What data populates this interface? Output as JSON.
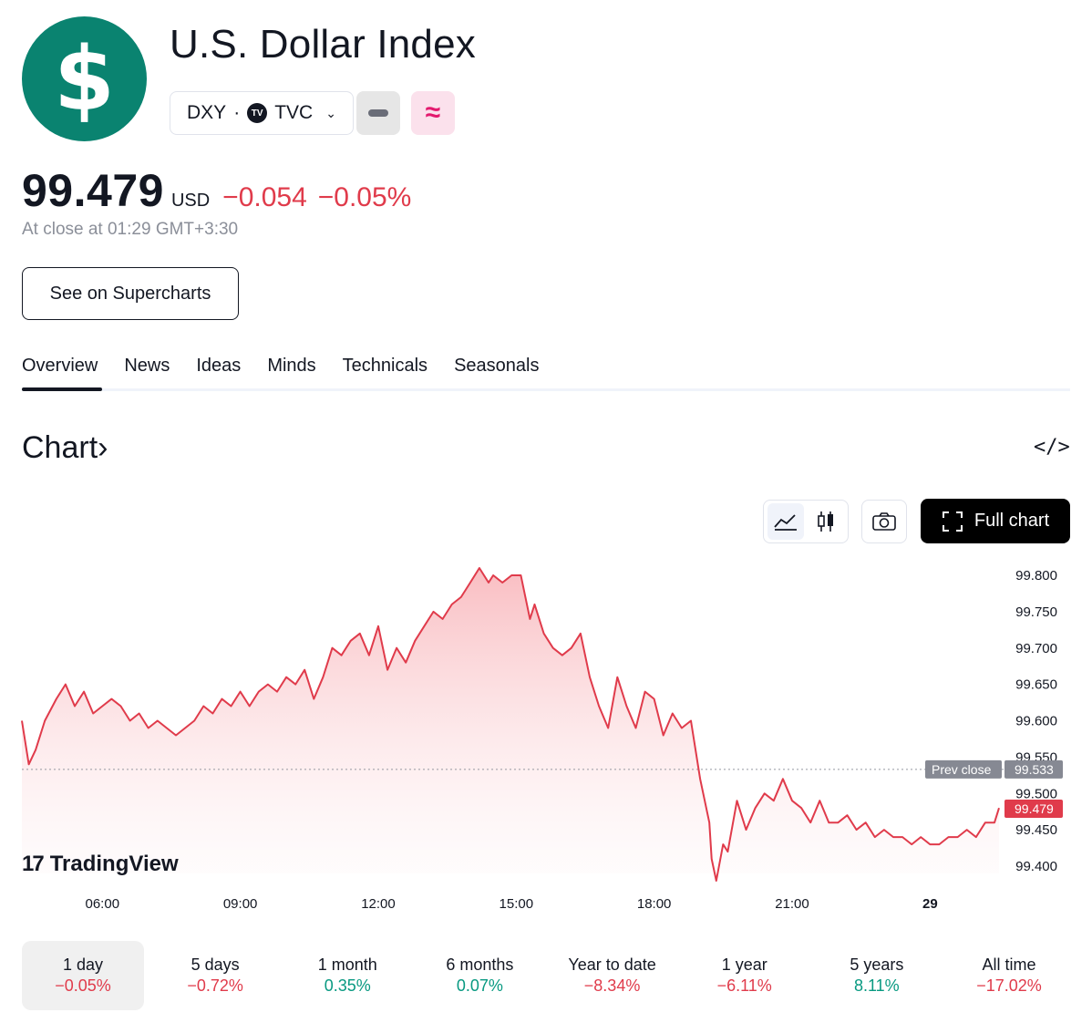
{
  "header": {
    "logo_glyph": "$",
    "title": "U.S. Dollar Index",
    "symbol": "DXY",
    "separator": "·",
    "exchange_badge": "TV",
    "exchange": "TVC",
    "pink_button_glyph": "≈"
  },
  "quote": {
    "price": "99.479",
    "currency": "USD",
    "change": "−0.054",
    "change_pct": "−0.05%",
    "close_time": "At close at 01:29 GMT+3:30"
  },
  "supercharts_label": "See on Supercharts",
  "tabs": [
    {
      "label": "Overview",
      "active": true
    },
    {
      "label": "News"
    },
    {
      "label": "Ideas"
    },
    {
      "label": "Minds"
    },
    {
      "label": "Technicals"
    },
    {
      "label": "Seasonals"
    }
  ],
  "chart_section": {
    "heading": "Chart",
    "heading_arrow": "›",
    "embed_glyph": "</>",
    "full_chart_label": "Full chart"
  },
  "chart_data": {
    "type": "area",
    "title": "",
    "x_ticks": [
      "06:00",
      "09:00",
      "12:00",
      "15:00",
      "18:00",
      "21:00",
      "29"
    ],
    "y_ticks": [
      "99.800",
      "99.750",
      "99.700",
      "99.650",
      "99.600",
      "99.550",
      "99.500",
      "99.450",
      "99.400"
    ],
    "ylim": [
      99.4,
      99.8
    ],
    "prev_close": {
      "label": "Prev close",
      "value": 99.533,
      "value_label": "99.533"
    },
    "last": {
      "value": 99.479,
      "value_label": "99.479"
    },
    "line_color": "#e03b4b",
    "series": [
      {
        "x_hours": [
          4.25,
          4.4,
          4.55,
          4.75,
          5.0,
          5.2,
          5.4,
          5.6,
          5.8,
          6.0,
          6.2,
          6.4,
          6.6,
          6.8,
          7.0,
          7.2,
          7.4,
          7.6,
          7.8,
          8.0,
          8.2,
          8.4,
          8.6,
          8.8,
          9.0,
          9.2,
          9.4,
          9.6,
          9.8,
          10.0,
          10.2,
          10.4,
          10.6,
          10.8,
          11.0,
          11.2,
          11.4,
          11.6,
          11.8,
          12.0,
          12.2,
          12.4,
          12.6,
          12.8,
          13.0,
          13.2,
          13.4,
          13.6,
          13.8,
          14.0,
          14.2,
          14.4,
          14.5,
          14.7,
          14.9,
          15.1,
          15.3,
          15.4,
          15.6,
          15.8,
          16.0,
          16.2,
          16.4,
          16.6,
          16.8,
          17.0,
          17.2,
          17.4,
          17.6,
          17.8,
          18.0,
          18.2,
          18.4,
          18.6,
          18.8,
          19.0,
          19.2,
          19.25,
          19.35,
          19.5,
          19.6,
          19.8,
          20.0,
          20.2,
          20.4,
          20.6,
          20.8,
          21.0,
          21.2,
          21.4,
          21.6,
          21.8,
          22.0,
          22.2,
          22.4,
          22.6,
          22.8,
          23.0,
          23.2,
          23.4,
          23.6,
          23.8,
          24.0,
          24.2,
          24.4,
          24.6,
          24.8,
          25.0,
          25.2,
          25.4,
          25.5
        ],
        "values": [
          99.6,
          99.54,
          99.56,
          99.6,
          99.63,
          99.65,
          99.62,
          99.64,
          99.61,
          99.62,
          99.63,
          99.62,
          99.6,
          99.61,
          99.59,
          99.6,
          99.59,
          99.58,
          99.59,
          99.6,
          99.62,
          99.61,
          99.63,
          99.62,
          99.64,
          99.62,
          99.64,
          99.65,
          99.64,
          99.66,
          99.65,
          99.67,
          99.63,
          99.66,
          99.7,
          99.69,
          99.71,
          99.72,
          99.69,
          99.73,
          99.67,
          99.7,
          99.68,
          99.71,
          99.73,
          99.75,
          99.74,
          99.76,
          99.77,
          99.79,
          99.81,
          99.79,
          99.8,
          99.79,
          99.8,
          99.8,
          99.74,
          99.76,
          99.72,
          99.7,
          99.69,
          99.7,
          99.72,
          99.66,
          99.62,
          99.59,
          99.66,
          99.62,
          99.59,
          99.64,
          99.63,
          99.58,
          99.61,
          99.59,
          99.6,
          99.52,
          99.46,
          99.41,
          99.38,
          99.43,
          99.42,
          99.49,
          99.45,
          99.48,
          99.5,
          99.49,
          99.52,
          99.49,
          99.48,
          99.46,
          99.49,
          99.46,
          99.46,
          99.47,
          99.45,
          99.46,
          99.44,
          99.45,
          99.44,
          99.44,
          99.43,
          99.44,
          99.43,
          99.43,
          99.44,
          99.44,
          99.45,
          99.44,
          99.46,
          99.46,
          99.48
        ]
      }
    ]
  },
  "watermark": {
    "mark": "17",
    "text": "TradingView"
  },
  "periods": [
    {
      "label": "1 day",
      "change": "−0.05%",
      "dir": "neg",
      "active": true
    },
    {
      "label": "5 days",
      "change": "−0.72%",
      "dir": "neg"
    },
    {
      "label": "1 month",
      "change": "0.35%",
      "dir": "pos"
    },
    {
      "label": "6 months",
      "change": "0.07%",
      "dir": "pos"
    },
    {
      "label": "Year to date",
      "change": "−8.34%",
      "dir": "neg"
    },
    {
      "label": "1 year",
      "change": "−6.11%",
      "dir": "neg"
    },
    {
      "label": "5 years",
      "change": "8.11%",
      "dir": "pos"
    },
    {
      "label": "All time",
      "change": "−17.02%",
      "dir": "neg"
    }
  ]
}
